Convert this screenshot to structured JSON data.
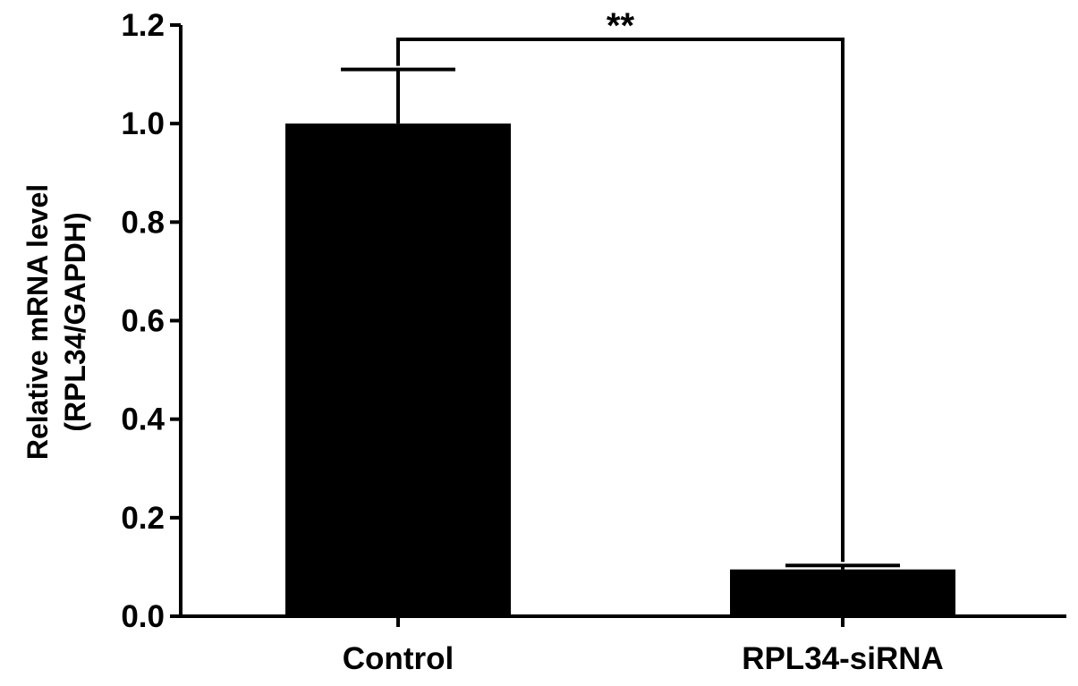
{
  "chart_data": {
    "type": "bar",
    "categories": [
      "Control",
      "RPL34-siRNA"
    ],
    "values": [
      1.0,
      0.095
    ],
    "error_upper": [
      0.11,
      0.008
    ],
    "ylabel_lines": [
      "Relative mRNA level",
      "(RPL34/GAPDH)"
    ],
    "xlabel": "",
    "ylim": [
      0,
      1.2
    ],
    "yticks": [
      "0.0",
      "0.2",
      "0.4",
      "0.6",
      "0.8",
      "1.0",
      "1.2"
    ],
    "significance": {
      "between": [
        "Control",
        "RPL34-siRNA"
      ],
      "label": "**"
    },
    "bar_color": "#000000",
    "grid": false,
    "legend": "none"
  }
}
